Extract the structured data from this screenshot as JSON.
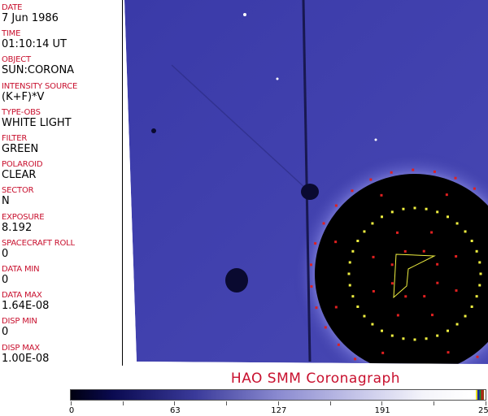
{
  "header_fields": [
    {
      "label": "DATE",
      "value": "7 Jun 1986"
    },
    {
      "label": "TIME",
      "value": "01:10:14 UT"
    },
    {
      "label": "OBJECT",
      "value": "SUN:CORONA"
    },
    {
      "label": "INTENSITY SOURCE",
      "value": "(K+F)*V"
    },
    {
      "label": "TYPE-OBS",
      "value": "WHITE LIGHT"
    },
    {
      "label": "FILTER",
      "value": "GREEN"
    },
    {
      "label": "POLAROID",
      "value": "CLEAR"
    },
    {
      "label": "SECTOR",
      "value": "N"
    },
    {
      "label": "EXPOSURE",
      "value": "8.192"
    },
    {
      "label": "SPACECRAFT ROLL",
      "value": "0"
    },
    {
      "label": "DATA MIN",
      "value": "0"
    },
    {
      "label": "DATA MAX",
      "value": "1.64E-08"
    },
    {
      "label": "DISP MIN",
      "value": "0"
    },
    {
      "label": "DISP MAX",
      "value": "1.00E-08"
    }
  ],
  "title": "HAO   SMM Coronagraph",
  "colorbar": {
    "ticks": [
      "0",
      "63",
      "127",
      "191",
      "255"
    ],
    "min": 0,
    "max": 255
  },
  "colors": {
    "label": "#c8102e",
    "image_bg": "#3c3ca8",
    "occulter": "#000000",
    "overlay_inner": "#f0f040",
    "overlay_outer": "#e02020"
  }
}
